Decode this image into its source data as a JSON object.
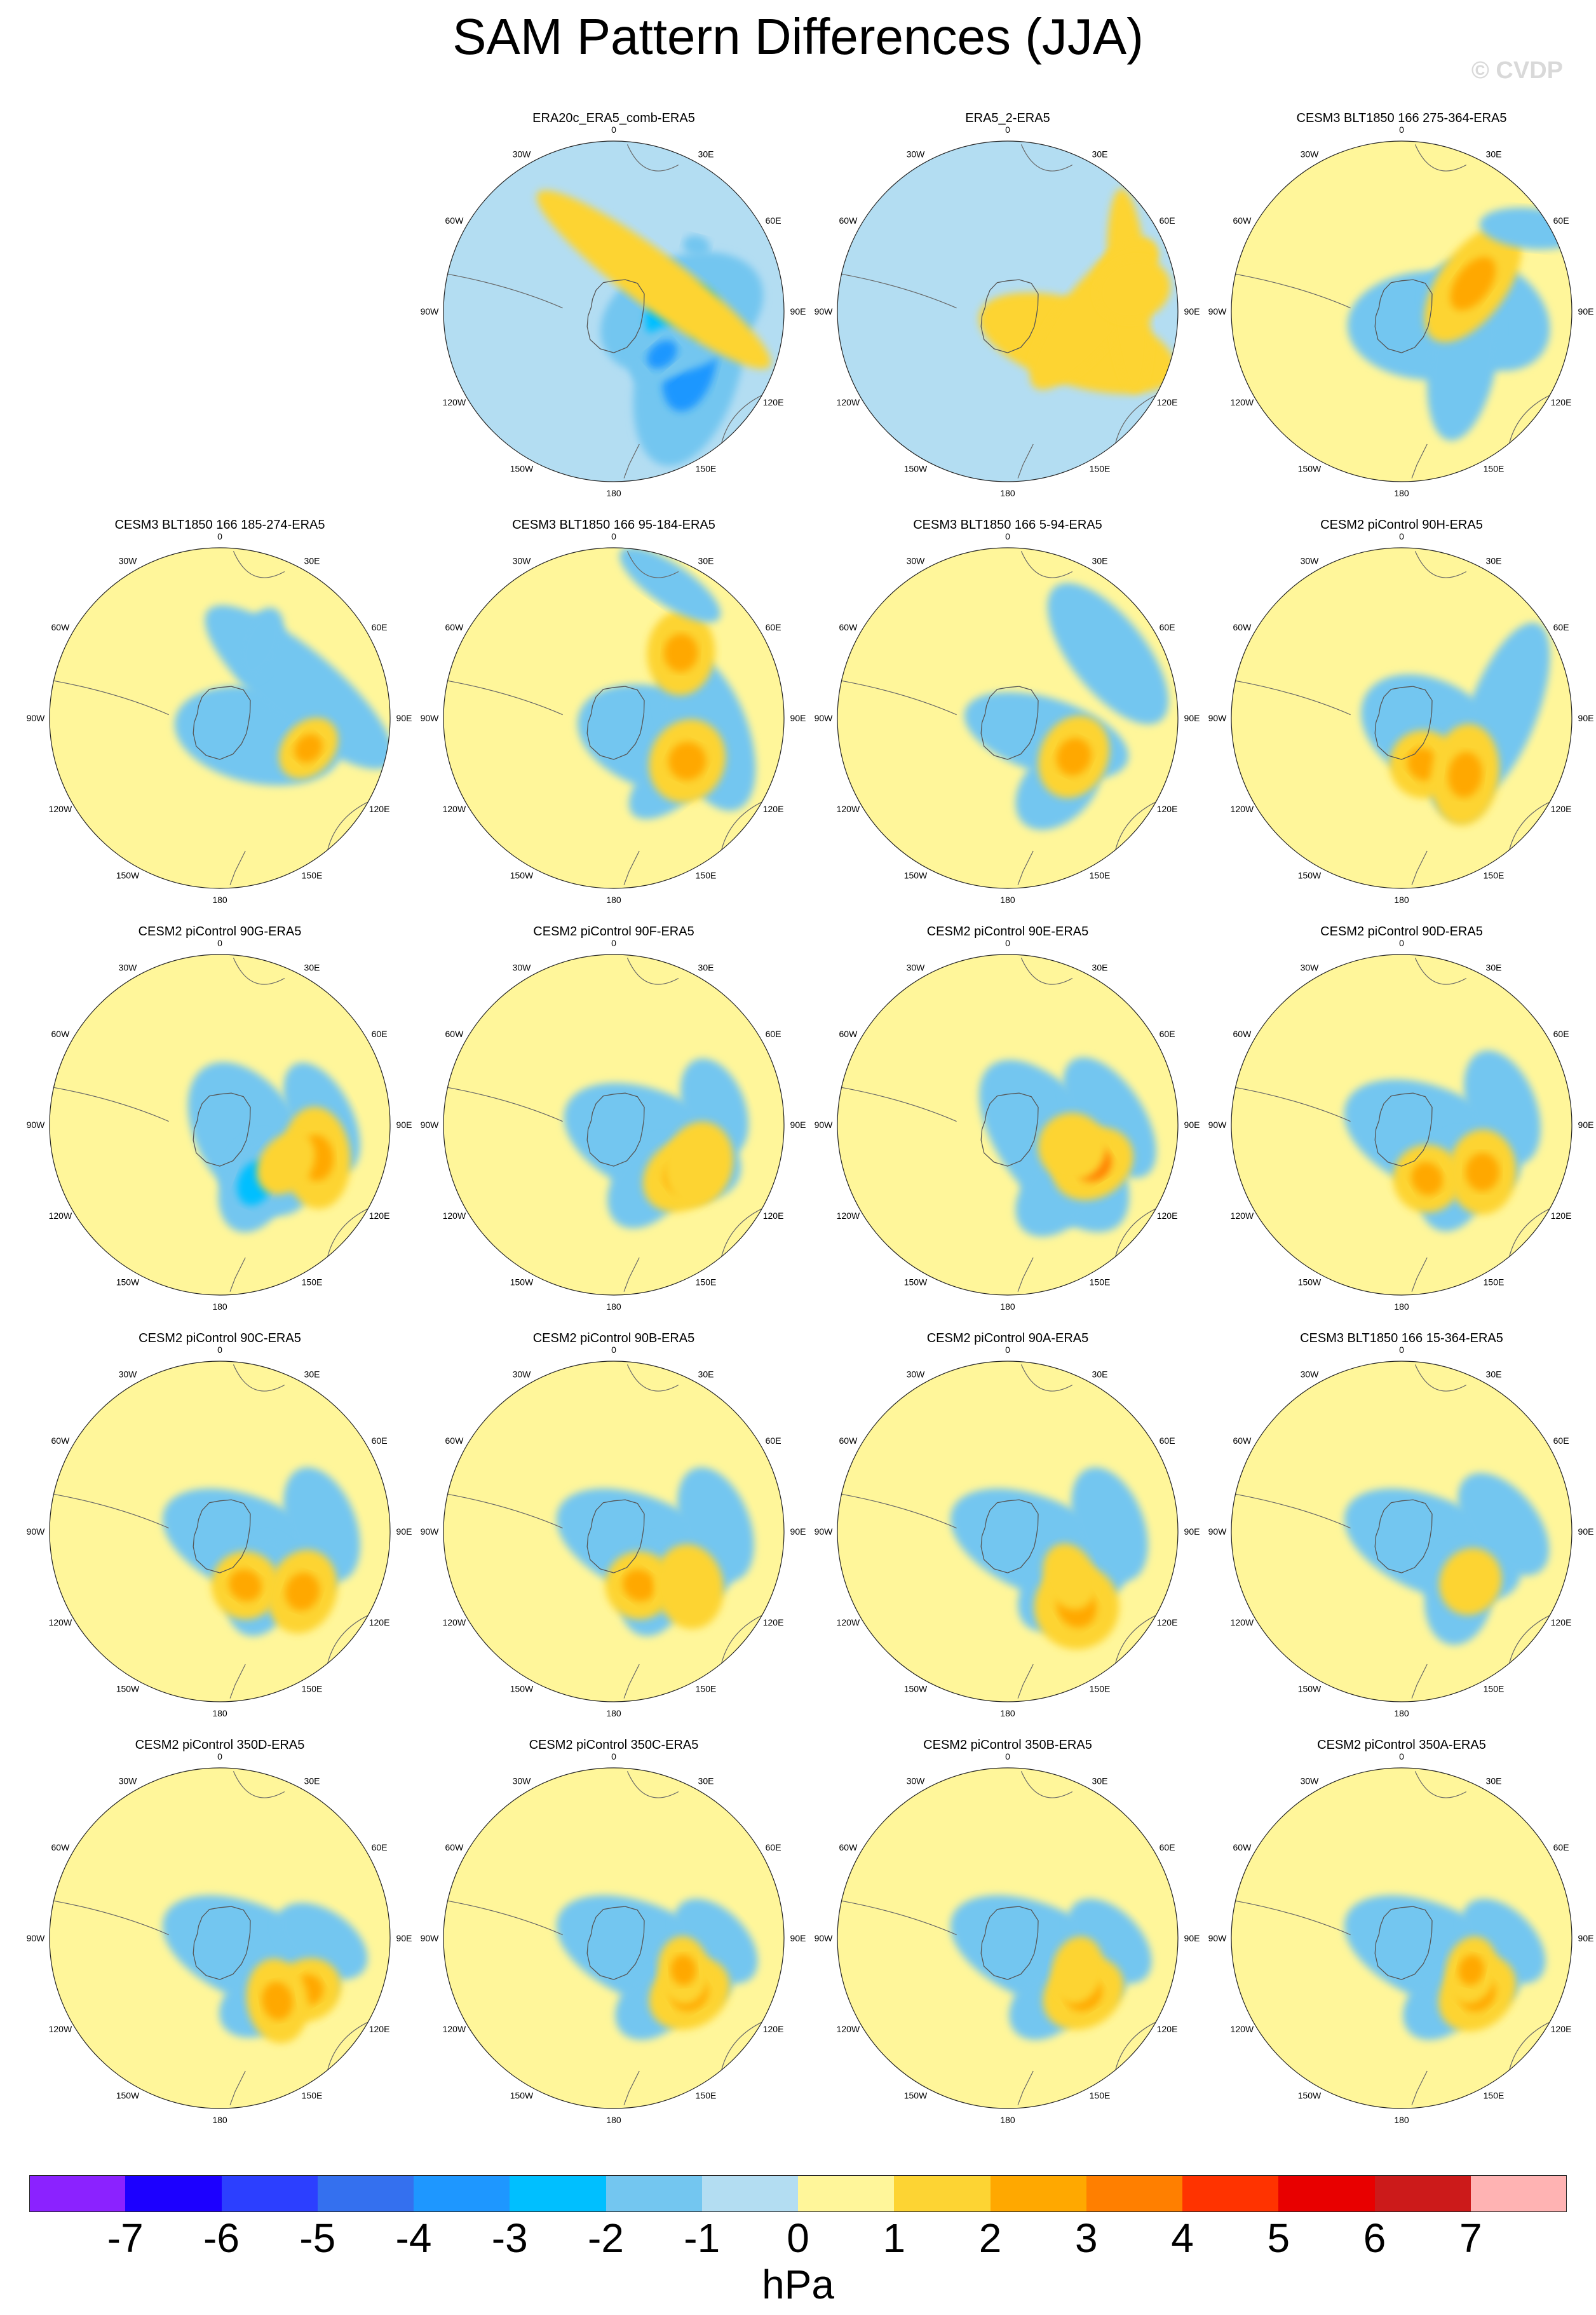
{
  "title": "SAM Pattern Differences (JJA)",
  "watermark": "© CVDP",
  "chart_data": {
    "type": "contour-map-panels",
    "projection": "south polar stereographic",
    "variable_units": "hPa",
    "colorbar": {
      "tick_labels": [
        "-7",
        "-6",
        "-5",
        "-4",
        "-3",
        "-2",
        "-1",
        "0",
        "1",
        "2",
        "3",
        "4",
        "5",
        "6",
        "7"
      ],
      "colors": [
        "#8b22ff",
        "#1c00ff",
        "#2c3fff",
        "#3470ef",
        "#1e97ff",
        "#00bfff",
        "#73c6f0",
        "#b3ddf2",
        "#fff69a",
        "#fdd433",
        "#ffa800",
        "#ff7f00",
        "#ff3300",
        "#e80000",
        "#cc1a1a",
        "#ffb3b3"
      ],
      "units": "hPa"
    },
    "longitude_labels": [
      "0",
      "30E",
      "60E",
      "90E",
      "120E",
      "150E",
      "180",
      "150W",
      "120W",
      "90W",
      "60W",
      "30W"
    ],
    "panels": [
      {
        "title": "ERA20c_ERA5_comb-ERA5",
        "background": "neg",
        "blobs": [
          [
            2.2,
            0.55,
            -1.3,
            0.6,
            0.3,
            -3.6
          ],
          [
            1.6,
            0.4,
            -0.4,
            0.5,
            0.33,
            -3.0
          ],
          [
            2.3,
            0.38,
            -0.7,
            0.22,
            0.14,
            -4.0
          ],
          [
            0.9,
            0.3,
            -2.5,
            0.85,
            0.16,
            1.2
          ],
          [
            0.9,
            0.62,
            0.25,
            0.08,
            0.06,
            -1.4
          ]
        ]
      },
      {
        "title": "ERA5_2-ERA5",
        "background": "neg",
        "blobs": [
          [
            2.0,
            0.45,
            0.3,
            0.6,
            0.25,
            1.3
          ],
          [
            1.6,
            0.5,
            -0.9,
            0.55,
            0.18,
            1.2
          ],
          [
            1.4,
            0.72,
            1.5,
            0.6,
            0.12,
            1.1
          ],
          [
            1.2,
            0.75,
            -0.5,
            0.2,
            0.12,
            1.1
          ],
          [
            1.4,
            0.75,
            -1.85,
            0.18,
            0.22,
            1.1
          ]
        ]
      },
      {
        "title": "CESM3 BLT1850 166 275-364-ERA5",
        "background": "pos",
        "blobs": [
          [
            2.0,
            0.2,
            0.0,
            0.5,
            0.32,
            -1.4
          ],
          [
            1.6,
            0.5,
            0.6,
            0.4,
            0.3,
            -1.3
          ],
          [
            2.2,
            0.45,
            -1.4,
            0.5,
            0.2,
            -1.3
          ],
          [
            1.2,
            0.45,
            2.2,
            0.4,
            0.2,
            2.1
          ],
          [
            1.0,
            0.9,
            0.1,
            0.3,
            0.12,
            -1.2
          ]
        ]
      },
      {
        "title": "CESM3 BLT1850 166 185-274-ERA5",
        "background": "pos",
        "blobs": [
          [
            2.0,
            0.25,
            0.2,
            0.5,
            0.28,
            -1.3
          ],
          [
            1.2,
            0.5,
            0.7,
            0.7,
            0.22,
            -1.2
          ],
          [
            0.5,
            0.5,
            -1.2,
            0.22,
            0.12,
            -1.3
          ],
          [
            1.9,
            0.55,
            2.3,
            0.2,
            0.15,
            2.0
          ]
        ]
      },
      {
        "title": "CESM3 BLT1850 166 95-184-ERA5",
        "background": "pos",
        "blobs": [
          [
            2.0,
            0.3,
            0.3,
            0.5,
            0.3,
            -1.5
          ],
          [
            1.7,
            0.55,
            1.2,
            0.5,
            0.24,
            -1.3
          ],
          [
            2.4,
            0.5,
            -0.7,
            0.3,
            0.15,
            -1.4
          ],
          [
            2.1,
            0.5,
            2.0,
            0.25,
            0.22,
            2.5
          ],
          [
            0.8,
            0.55,
            -1.5,
            0.25,
            0.2,
            2.3
          ],
          [
            0.4,
            0.85,
            0.6,
            0.35,
            0.12,
            -1.2
          ]
        ]
      },
      {
        "title": "CESM3 BLT1850 166 5-94-ERA5",
        "background": "pos",
        "blobs": [
          [
            2.0,
            0.25,
            0.3,
            0.5,
            0.22,
            -1.3
          ],
          [
            2.5,
            0.5,
            -0.8,
            0.3,
            0.2,
            -1.4
          ],
          [
            1.0,
            0.7,
            0.9,
            0.5,
            0.22,
            -1.3
          ],
          [
            2.1,
            0.45,
            2.0,
            0.25,
            0.2,
            2.1
          ]
        ]
      },
      {
        "title": "CESM2 piControl 90H-ERA5",
        "background": "pos",
        "blobs": [
          [
            2.0,
            0.2,
            0.5,
            0.45,
            0.3,
            -1.4
          ],
          [
            1.5,
            0.6,
            -1.2,
            0.55,
            0.2,
            -1.3
          ],
          [
            2.3,
            0.45,
            -1.6,
            0.3,
            0.2,
            -1.4
          ],
          [
            2.7,
            0.3,
            2.4,
            0.2,
            0.2,
            2.6
          ],
          [
            2.3,
            0.5,
            1.7,
            0.3,
            0.2,
            2.4
          ]
        ]
      },
      {
        "title": "CESM2 piControl 90G-ERA5",
        "background": "pos",
        "blobs": [
          [
            2.0,
            0.2,
            1.0,
            0.5,
            0.3,
            -1.5
          ],
          [
            2.6,
            0.4,
            -1.2,
            0.3,
            0.2,
            -2.8
          ],
          [
            1.5,
            0.6,
            1.1,
            0.35,
            0.18,
            -1.3
          ],
          [
            1.9,
            0.6,
            1.5,
            0.3,
            0.2,
            2.6
          ],
          [
            2.1,
            0.45,
            -0.9,
            0.2,
            0.15,
            1.8
          ]
        ]
      },
      {
        "title": "CESM2 piControl 90F-ERA5",
        "background": "pos",
        "blobs": [
          [
            2.0,
            0.25,
            0.4,
            0.55,
            0.3,
            -1.4
          ],
          [
            2.6,
            0.4,
            -0.9,
            0.3,
            0.2,
            -1.5
          ],
          [
            1.4,
            0.6,
            1.2,
            0.3,
            0.18,
            -1.3
          ],
          [
            2.2,
            0.5,
            2.5,
            0.25,
            0.2,
            2.7
          ],
          [
            2.0,
            0.55,
            1.8,
            0.25,
            0.2,
            1.9
          ]
        ]
      },
      {
        "title": "CESM2 piControl 90E-ERA5",
        "background": "pos",
        "blobs": [
          [
            2.0,
            0.3,
            0.9,
            0.6,
            0.3,
            -1.5
          ],
          [
            1.5,
            0.6,
            1.0,
            0.4,
            0.2,
            -1.6
          ],
          [
            2.5,
            0.5,
            -0.8,
            0.3,
            0.2,
            -1.3
          ],
          [
            2.0,
            0.55,
            2.6,
            0.25,
            0.2,
            3.0
          ],
          [
            1.9,
            0.4,
            1.5,
            0.2,
            0.2,
            1.9
          ]
        ]
      },
      {
        "title": "CESM2 piControl 90D-ERA5",
        "background": "pos",
        "blobs": [
          [
            2.0,
            0.2,
            0.4,
            0.55,
            0.3,
            -1.5
          ],
          [
            1.4,
            0.6,
            1.2,
            0.35,
            0.2,
            -1.6
          ],
          [
            2.4,
            0.45,
            -1.3,
            0.3,
            0.2,
            -1.5
          ],
          [
            2.7,
            0.35,
            2.6,
            0.2,
            0.2,
            2.8
          ],
          [
            2.1,
            0.55,
            1.6,
            0.25,
            0.2,
            2.1
          ]
        ]
      },
      {
        "title": "CESM2 piControl 90C-ERA5",
        "background": "pos",
        "blobs": [
          [
            2.0,
            0.2,
            0.4,
            0.55,
            0.28,
            -1.4
          ],
          [
            1.5,
            0.6,
            1.2,
            0.35,
            0.2,
            -1.6
          ],
          [
            2.5,
            0.4,
            -1.3,
            0.3,
            0.2,
            -2.0
          ],
          [
            2.7,
            0.35,
            2.2,
            0.2,
            0.2,
            2.8
          ],
          [
            2.2,
            0.6,
            1.9,
            0.25,
            0.2,
            2.7
          ]
        ]
      },
      {
        "title": "CESM2 piControl 90B-ERA5",
        "background": "pos",
        "blobs": [
          [
            2.0,
            0.2,
            0.4,
            0.55,
            0.28,
            -1.4
          ],
          [
            1.5,
            0.6,
            1.2,
            0.35,
            0.2,
            -1.6
          ],
          [
            2.5,
            0.4,
            -1.3,
            0.3,
            0.2,
            -3.0
          ],
          [
            2.7,
            0.35,
            2.2,
            0.2,
            0.2,
            2.1
          ],
          [
            2.2,
            0.55,
            1.4,
            0.25,
            0.2,
            1.8
          ]
        ]
      },
      {
        "title": "CESM2 piControl 90A-ERA5",
        "background": "pos",
        "blobs": [
          [
            2.0,
            0.2,
            0.4,
            0.55,
            0.28,
            -1.4
          ],
          [
            1.5,
            0.6,
            1.2,
            0.35,
            0.2,
            -1.6
          ],
          [
            2.5,
            0.45,
            -0.9,
            0.25,
            0.18,
            -1.4
          ],
          [
            2.4,
            0.6,
            2.6,
            0.25,
            0.25,
            2.8
          ],
          [
            2.2,
            0.45,
            1.2,
            0.2,
            0.15,
            1.6
          ]
        ]
      },
      {
        "title": "CESM3 BLT1850 166 15-364-ERA5",
        "background": "pos",
        "blobs": [
          [
            2.0,
            0.2,
            0.4,
            0.55,
            0.28,
            -1.4
          ],
          [
            1.5,
            0.6,
            0.9,
            0.35,
            0.2,
            -1.3
          ],
          [
            2.4,
            0.5,
            -1.4,
            0.3,
            0.2,
            -1.5
          ],
          [
            2.2,
            0.5,
            2.0,
            0.2,
            0.18,
            1.9
          ]
        ]
      },
      {
        "title": "CESM2 piControl 350D-ERA5",
        "background": "pos",
        "blobs": [
          [
            2.0,
            0.2,
            0.4,
            0.55,
            0.28,
            -1.3
          ],
          [
            1.6,
            0.6,
            0.6,
            0.3,
            0.18,
            -1.3
          ],
          [
            2.6,
            0.45,
            -0.5,
            0.25,
            0.18,
            -1.5
          ],
          [
            2.1,
            0.6,
            2.6,
            0.2,
            0.18,
            2.0
          ],
          [
            2.4,
            0.5,
            1.4,
            0.25,
            0.18,
            2.0
          ]
        ]
      },
      {
        "title": "CESM2 piControl 350C-ERA5",
        "background": "pos",
        "blobs": [
          [
            2.0,
            0.2,
            0.4,
            0.55,
            0.28,
            -1.3
          ],
          [
            1.6,
            0.6,
            0.8,
            0.3,
            0.18,
            -1.3
          ],
          [
            2.6,
            0.45,
            -0.7,
            0.25,
            0.18,
            -1.4
          ],
          [
            2.2,
            0.55,
            2.6,
            0.25,
            0.2,
            2.1
          ],
          [
            2.0,
            0.45,
            1.5,
            0.2,
            0.15,
            2.1
          ]
        ]
      },
      {
        "title": "CESM2 piControl 350B-ERA5",
        "background": "pos",
        "blobs": [
          [
            2.0,
            0.2,
            0.4,
            0.55,
            0.28,
            -1.3
          ],
          [
            1.6,
            0.6,
            0.8,
            0.3,
            0.18,
            -1.3
          ],
          [
            2.6,
            0.45,
            -0.7,
            0.25,
            0.18,
            -1.3
          ],
          [
            2.2,
            0.55,
            2.6,
            0.25,
            0.2,
            2.1
          ],
          [
            2.0,
            0.45,
            1.8,
            0.2,
            0.15,
            1.9
          ]
        ]
      },
      {
        "title": "CESM2 piControl 350A-ERA5",
        "background": "pos",
        "blobs": [
          [
            2.0,
            0.2,
            0.4,
            0.55,
            0.28,
            -1.3
          ],
          [
            1.6,
            0.6,
            0.8,
            0.3,
            0.18,
            -1.5
          ],
          [
            2.6,
            0.45,
            -0.7,
            0.25,
            0.18,
            -1.4
          ],
          [
            2.2,
            0.55,
            2.4,
            0.25,
            0.2,
            2.2
          ],
          [
            2.0,
            0.45,
            1.8,
            0.2,
            0.15,
            2.1
          ]
        ]
      }
    ]
  }
}
